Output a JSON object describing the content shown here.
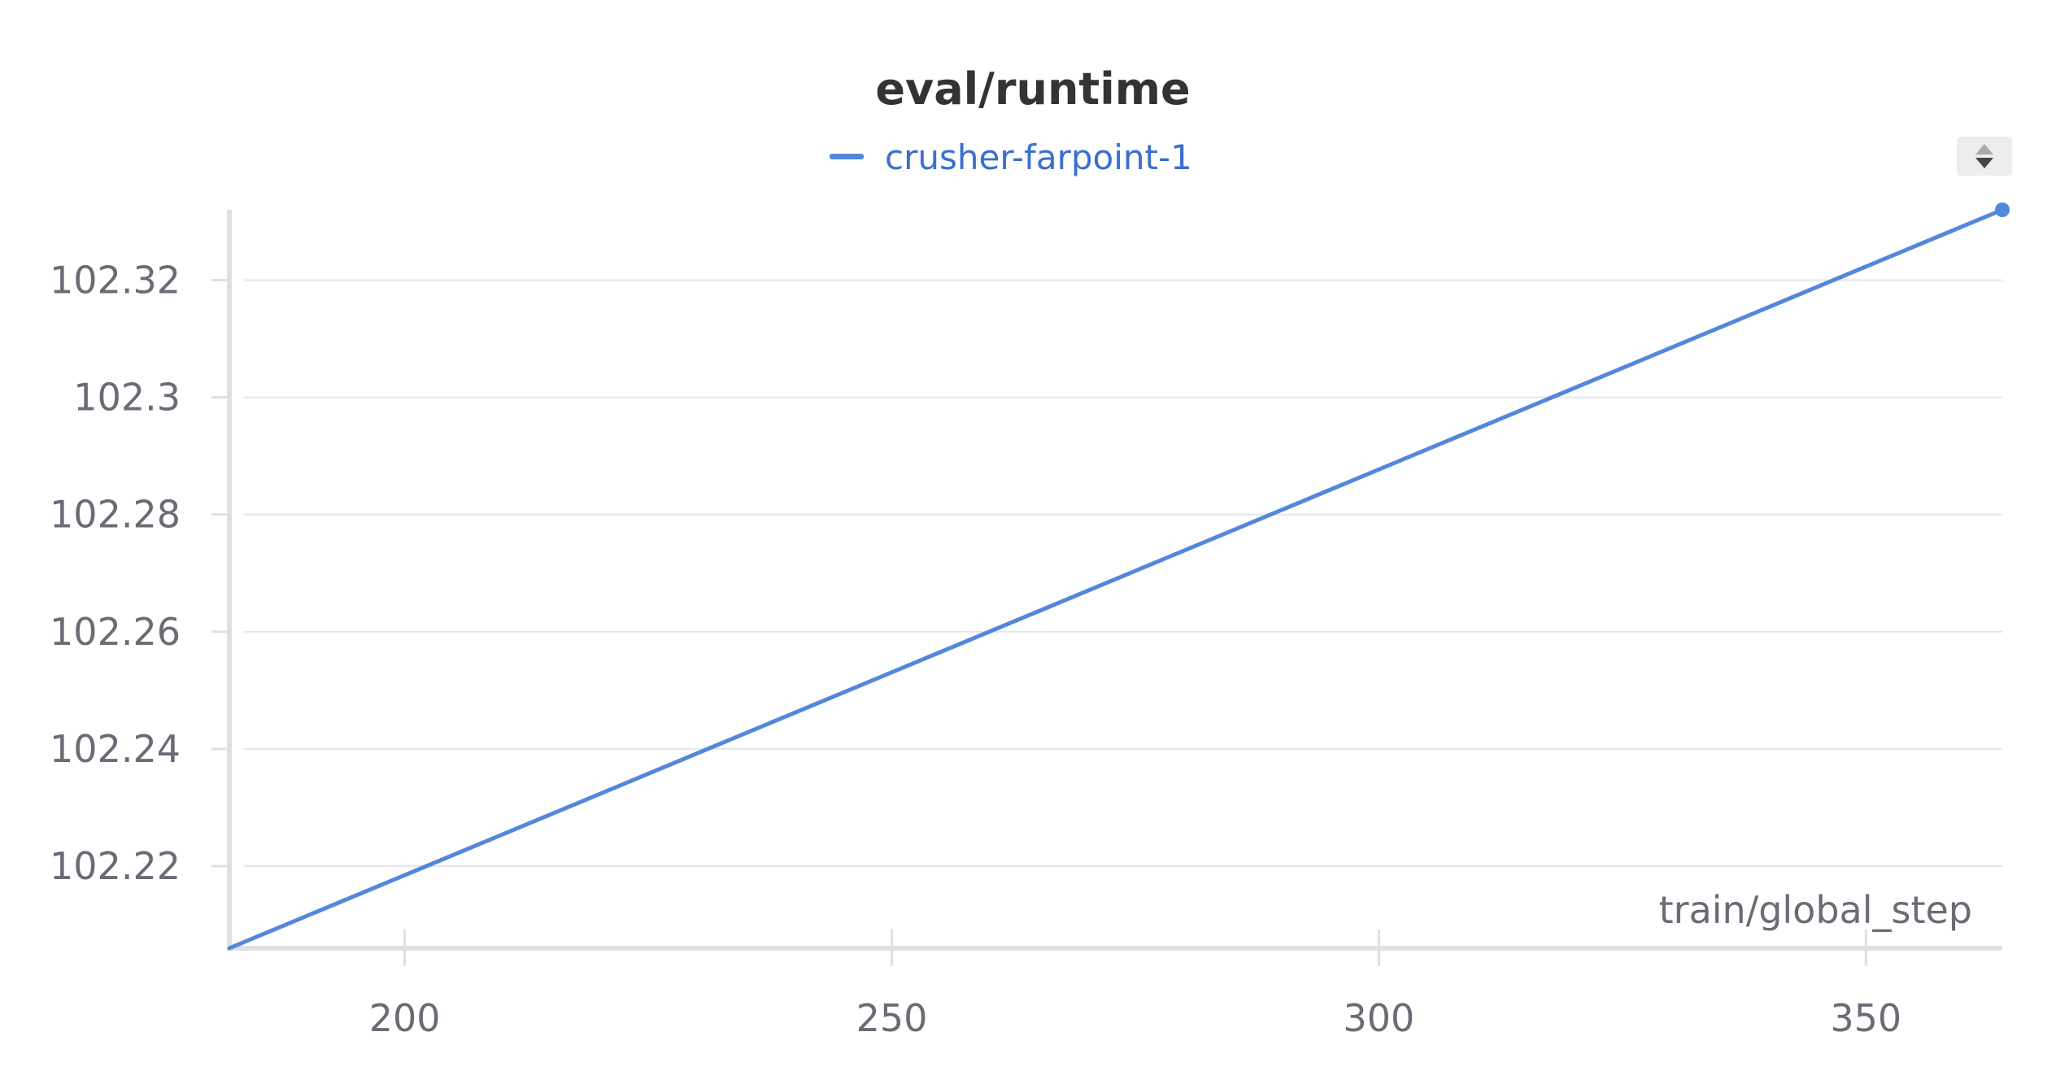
{
  "chart_data": {
    "type": "line",
    "title": "eval/runtime",
    "xlabel": "train/global_step",
    "ylabel": "",
    "xlim": [
      182,
      364
    ],
    "ylim": [
      102.206,
      102.332
    ],
    "x_ticks": [
      200,
      250,
      300,
      350
    ],
    "y_ticks": [
      102.22,
      102.24,
      102.26,
      102.28,
      102.3,
      102.32
    ],
    "y_tick_labels": [
      "102.22",
      "102.24",
      "102.26",
      "102.28",
      "102.3",
      "102.32"
    ],
    "x_tick_labels": [
      "200",
      "250",
      "300",
      "350"
    ],
    "grid": true,
    "legend": "top-center",
    "series": [
      {
        "name": "crusher-farpoint-1",
        "color": "#5387dd",
        "x": [
          182,
          364
        ],
        "y": [
          102.206,
          102.332
        ]
      }
    ]
  },
  "legend_scroll": {
    "icon": "legend-scroll-arrows-icon"
  }
}
